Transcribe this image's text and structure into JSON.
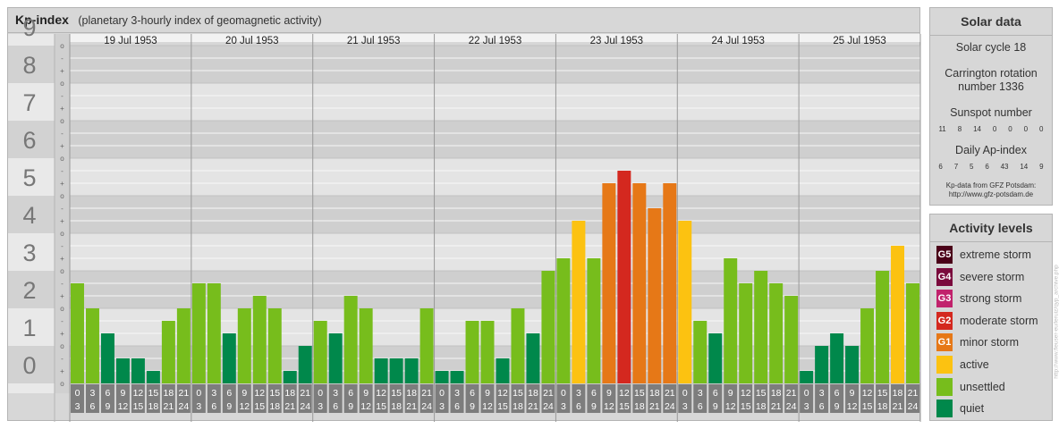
{
  "header": {
    "title": "Kp-index",
    "subtitle": "(planetary 3-hourly index of geomagnetic activity)"
  },
  "chart_data": {
    "type": "bar",
    "ylim": [
      0,
      9
    ],
    "y_major_ticks": [
      "0",
      "1",
      "2",
      "3",
      "4",
      "5",
      "6",
      "7",
      "8",
      "9"
    ],
    "y_minor_labels": [
      "o",
      "+",
      "-"
    ],
    "days": [
      "19 Jul 1953",
      "20 Jul 1953",
      "21 Jul 1953",
      "22 Jul 1953",
      "23 Jul 1953",
      "24 Jul 1953",
      "25 Jul 1953"
    ],
    "interval_labels": [
      [
        "0",
        "3"
      ],
      [
        "3",
        "6"
      ],
      [
        "6",
        "9"
      ],
      [
        "9",
        "12"
      ],
      [
        "12",
        "15"
      ],
      [
        "15",
        "18"
      ],
      [
        "18",
        "21"
      ],
      [
        "21",
        "24"
      ]
    ],
    "values": [
      [
        2.667,
        2.0,
        1.333,
        0.667,
        0.667,
        0.333,
        1.667,
        2.0
      ],
      [
        2.667,
        2.667,
        1.333,
        2.0,
        2.333,
        2.0,
        0.333,
        1.0
      ],
      [
        1.667,
        1.333,
        2.333,
        2.0,
        0.667,
        0.667,
        0.667,
        2.0
      ],
      [
        0.333,
        0.333,
        1.667,
        1.667,
        0.667,
        2.0,
        1.333,
        3.0
      ],
      [
        3.333,
        4.333,
        3.333,
        5.333,
        5.667,
        5.333,
        4.667,
        5.333
      ],
      [
        4.333,
        1.667,
        1.333,
        3.333,
        2.667,
        3.0,
        2.667,
        2.333
      ],
      [
        0.333,
        1.0,
        1.333,
        1.0,
        2.0,
        3.0,
        3.667,
        2.667
      ]
    ],
    "levels": [
      [
        3,
        3,
        4,
        4,
        4,
        4,
        3,
        3
      ],
      [
        3,
        3,
        4,
        3,
        3,
        3,
        4,
        4
      ],
      [
        3,
        4,
        3,
        3,
        4,
        4,
        4,
        3
      ],
      [
        4,
        4,
        3,
        3,
        4,
        3,
        4,
        3
      ],
      [
        3,
        2,
        3,
        1,
        0,
        1,
        1,
        1
      ],
      [
        2,
        3,
        4,
        3,
        3,
        3,
        3,
        3
      ],
      [
        4,
        4,
        4,
        4,
        3,
        3,
        2,
        3
      ]
    ],
    "level_colors": [
      "#d4281f",
      "#e67817",
      "#fcc211",
      "#77bd1c",
      "#00884b"
    ]
  },
  "solar_data": {
    "title": "Solar data",
    "solar_cycle": "Solar cycle 18",
    "carrington_line1": "Carrington rotation",
    "carrington_line2": "number 1336",
    "sunspot_label": "Sunspot number",
    "sunspot_values": [
      "11",
      "8",
      "14",
      "0",
      "0",
      "0",
      "0"
    ],
    "ap_label": "Daily Ap-index",
    "ap_values": [
      "6",
      "7",
      "5",
      "6",
      "43",
      "14",
      "9"
    ],
    "source_line1": "Kp-data from GFZ Potsdam:",
    "source_line2": "http://www.gfz-potsdam.de"
  },
  "activity_levels": {
    "title": "Activity levels",
    "items": [
      {
        "code": "G5",
        "label": "extreme storm",
        "color": "#4a0018"
      },
      {
        "code": "G4",
        "label": "severe storm",
        "color": "#7a0a3c"
      },
      {
        "code": "G3",
        "label": "strong storm",
        "color": "#c1226c"
      },
      {
        "code": "G2",
        "label": "moderate storm",
        "color": "#d4281f"
      },
      {
        "code": "G1",
        "label": "minor storm",
        "color": "#e67817"
      },
      {
        "code": "",
        "label": "active",
        "color": "#fcc211"
      },
      {
        "code": "",
        "label": "unsettled",
        "color": "#77bd1c"
      },
      {
        "code": "",
        "label": "quiet",
        "color": "#00884b"
      }
    ]
  },
  "watermark": "http://www.fleuser-eu/leruiz/qyp_archive.php"
}
